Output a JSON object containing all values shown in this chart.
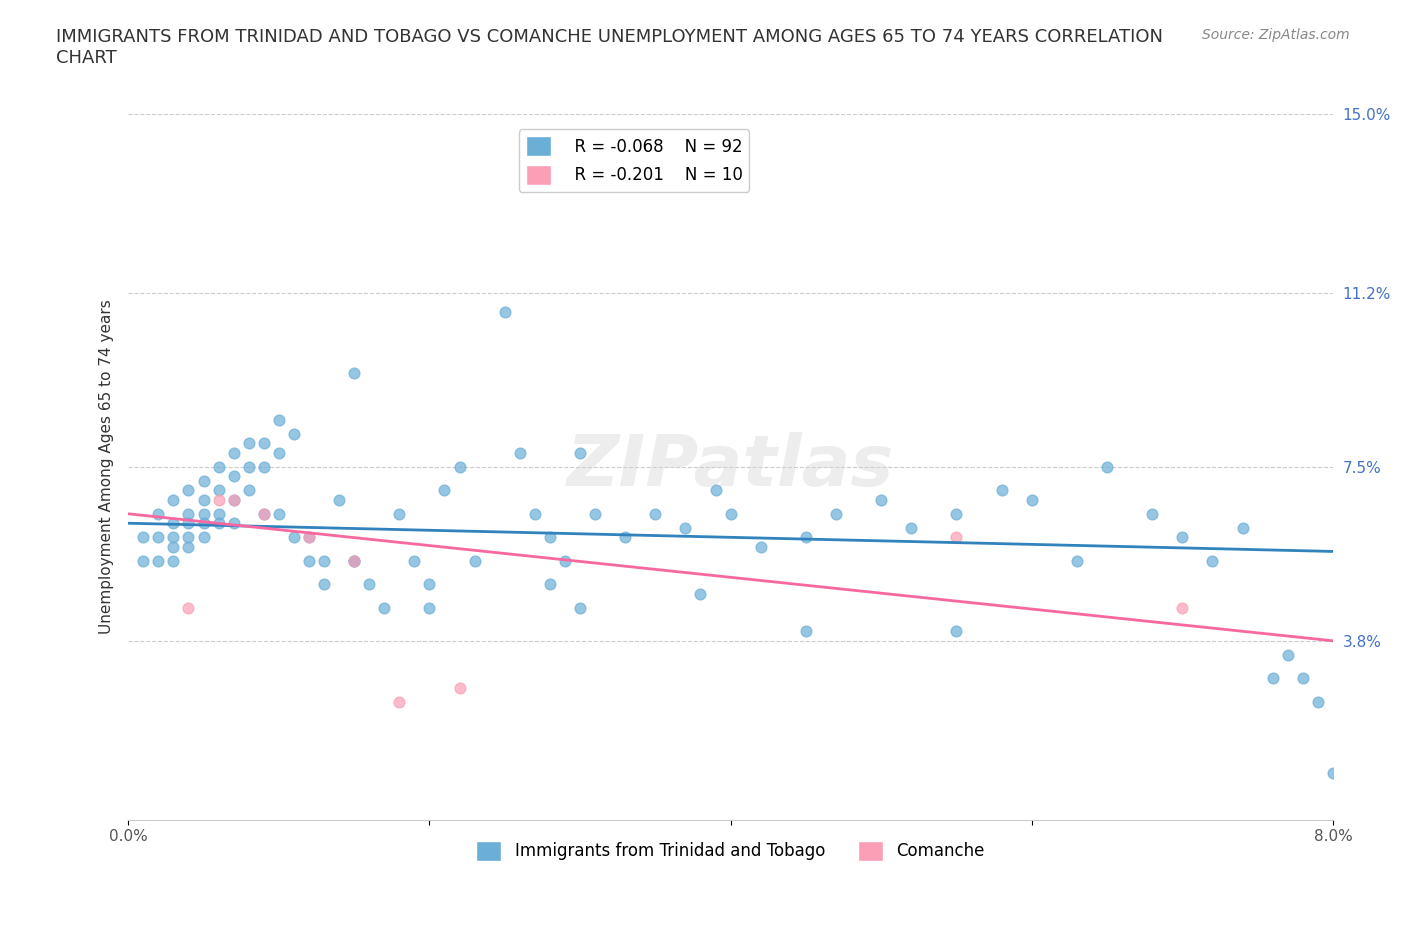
{
  "title": "IMMIGRANTS FROM TRINIDAD AND TOBAGO VS COMANCHE UNEMPLOYMENT AMONG AGES 65 TO 74 YEARS CORRELATION\nCHART",
  "source_text": "Source: ZipAtlas.com",
  "xlabel": "",
  "ylabel": "Unemployment Among Ages 65 to 74 years",
  "xlim": [
    0.0,
    0.08
  ],
  "ylim": [
    0.0,
    0.15
  ],
  "xticks": [
    0.0,
    0.02,
    0.04,
    0.06,
    0.08
  ],
  "xticklabels": [
    "0.0%",
    "",
    "",
    "",
    "8.0%"
  ],
  "ytick_positions": [
    0.038,
    0.075,
    0.112,
    0.15
  ],
  "ytick_labels": [
    "3.8%",
    "7.5%",
    "11.2%",
    "15.0%"
  ],
  "grid_color": "#cccccc",
  "watermark": "ZIPatlas",
  "blue_color": "#6baed6",
  "pink_color": "#fa9fb5",
  "blue_line_color": "#3182bd",
  "pink_line_color": "#f768a1",
  "legend_R_blue": "R = -0.068",
  "legend_N_blue": "N = 92",
  "legend_R_pink": "R = -0.201",
  "legend_N_pink": "N = 10",
  "blue_scatter_x": [
    0.001,
    0.001,
    0.002,
    0.002,
    0.002,
    0.003,
    0.003,
    0.003,
    0.003,
    0.003,
    0.004,
    0.004,
    0.004,
    0.004,
    0.004,
    0.005,
    0.005,
    0.005,
    0.005,
    0.005,
    0.006,
    0.006,
    0.006,
    0.006,
    0.007,
    0.007,
    0.007,
    0.007,
    0.008,
    0.008,
    0.008,
    0.009,
    0.009,
    0.009,
    0.01,
    0.01,
    0.01,
    0.011,
    0.011,
    0.012,
    0.012,
    0.013,
    0.013,
    0.014,
    0.015,
    0.015,
    0.016,
    0.017,
    0.018,
    0.019,
    0.02,
    0.02,
    0.021,
    0.022,
    0.023,
    0.025,
    0.026,
    0.027,
    0.028,
    0.029,
    0.03,
    0.031,
    0.033,
    0.035,
    0.037,
    0.039,
    0.04,
    0.042,
    0.045,
    0.047,
    0.05,
    0.052,
    0.055,
    0.058,
    0.06,
    0.063,
    0.065,
    0.068,
    0.07,
    0.072,
    0.074,
    0.076,
    0.077,
    0.078,
    0.079,
    0.08,
    0.055,
    0.045,
    0.038,
    0.03,
    0.028,
    0.015
  ],
  "blue_scatter_y": [
    0.06,
    0.055,
    0.065,
    0.06,
    0.055,
    0.068,
    0.063,
    0.06,
    0.058,
    0.055,
    0.07,
    0.065,
    0.063,
    0.06,
    0.058,
    0.072,
    0.068,
    0.065,
    0.063,
    0.06,
    0.075,
    0.07,
    0.065,
    0.063,
    0.078,
    0.073,
    0.068,
    0.063,
    0.08,
    0.075,
    0.07,
    0.08,
    0.075,
    0.065,
    0.085,
    0.078,
    0.065,
    0.082,
    0.06,
    0.06,
    0.055,
    0.055,
    0.05,
    0.068,
    0.095,
    0.055,
    0.05,
    0.045,
    0.065,
    0.055,
    0.05,
    0.045,
    0.07,
    0.075,
    0.055,
    0.108,
    0.078,
    0.065,
    0.06,
    0.055,
    0.078,
    0.065,
    0.06,
    0.065,
    0.062,
    0.07,
    0.065,
    0.058,
    0.06,
    0.065,
    0.068,
    0.062,
    0.065,
    0.07,
    0.068,
    0.055,
    0.075,
    0.065,
    0.06,
    0.055,
    0.062,
    0.03,
    0.035,
    0.03,
    0.025,
    0.01,
    0.04,
    0.04,
    0.048,
    0.045,
    0.05,
    0.055
  ],
  "pink_scatter_x": [
    0.004,
    0.006,
    0.007,
    0.009,
    0.012,
    0.015,
    0.018,
    0.022,
    0.055,
    0.07
  ],
  "pink_scatter_y": [
    0.045,
    0.068,
    0.068,
    0.065,
    0.06,
    0.055,
    0.025,
    0.028,
    0.06,
    0.045
  ],
  "blue_trend_x": [
    0.0,
    0.08
  ],
  "blue_trend_y": [
    0.063,
    0.057
  ],
  "pink_trend_x": [
    0.0,
    0.08
  ],
  "pink_trend_y": [
    0.065,
    0.038
  ],
  "background_color": "#ffffff",
  "title_fontsize": 13,
  "axis_label_fontsize": 11,
  "tick_fontsize": 11,
  "legend_fontsize": 12,
  "source_fontsize": 10,
  "scatter_alpha": 0.7,
  "scatter_size": 60
}
